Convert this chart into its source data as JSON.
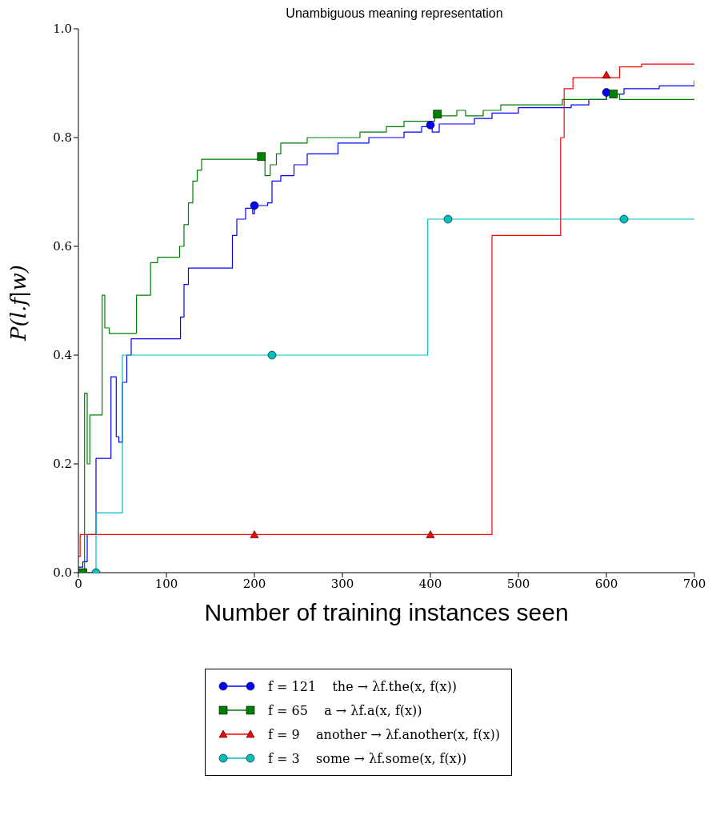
{
  "chart_data": {
    "type": "step",
    "title": "Unambiguous meaning representation",
    "xlabel": "Number of training instances seen",
    "ylabel": "P(l.f|w)",
    "xlim": [
      0,
      700
    ],
    "xticks": [
      0,
      100,
      200,
      300,
      400,
      500,
      600,
      700
    ],
    "ylim": [
      0,
      1
    ],
    "yticks": [
      {
        "value": 0,
        "label": "0.0"
      },
      {
        "value": 0.2,
        "label": "0.2"
      },
      {
        "value": 0.4,
        "label": "0.4"
      },
      {
        "value": 0.6,
        "label": "0.6"
      },
      {
        "value": 0.8,
        "label": "0.8"
      },
      {
        "value": 1,
        "label": "1.0"
      }
    ],
    "grid": false,
    "legend": "bottom",
    "line_style": "solid",
    "series": [
      {
        "name": "f = 121    the → λf.the(x, f(x))",
        "color": "#0000ff",
        "x": [
          0,
          5,
          10,
          20,
          35,
          37,
          40,
          43,
          46,
          50,
          55,
          60,
          115,
          116,
          120,
          125,
          170,
          175,
          180,
          190,
          195,
          198,
          200,
          215,
          220,
          230,
          245,
          260,
          290,
          295,
          320,
          330,
          370,
          390,
          400,
          402,
          410,
          450,
          470,
          500,
          560,
          580,
          600,
          620,
          660,
          700
        ],
        "values": [
          0.01,
          0.02,
          0.07,
          0.21,
          0.21,
          0.36,
          0.36,
          0.25,
          0.24,
          0.35,
          0.4,
          0.43,
          0.43,
          0.47,
          0.53,
          0.56,
          0.56,
          0.62,
          0.65,
          0.67,
          0.67,
          0.66,
          0.675,
          0.68,
          0.72,
          0.73,
          0.75,
          0.77,
          0.77,
          0.79,
          0.79,
          0.8,
          0.81,
          0.82,
          0.82,
          0.81,
          0.825,
          0.835,
          0.845,
          0.855,
          0.86,
          0.87,
          0.88,
          0.89,
          0.895,
          0.905
        ]
      },
      {
        "name": "f = 65    a → λf.a(x, f(x))",
        "color": "#008000",
        "x": [
          0,
          5,
          7,
          10,
          13,
          25,
          27,
          30,
          35,
          65,
          66,
          80,
          82,
          90,
          110,
          115,
          120,
          125,
          130,
          135,
          140,
          165,
          210,
          212,
          218,
          225,
          230,
          245,
          260,
          300,
          320,
          350,
          370,
          405,
          430,
          440,
          460,
          480,
          530,
          550,
          600,
          610,
          615,
          700
        ],
        "values": [
          0,
          0,
          0.33,
          0.2,
          0.29,
          0.29,
          0.51,
          0.45,
          0.44,
          0.44,
          0.51,
          0.51,
          0.57,
          0.58,
          0.58,
          0.6,
          0.64,
          0.68,
          0.72,
          0.74,
          0.76,
          0.76,
          0.77,
          0.73,
          0.75,
          0.77,
          0.79,
          0.79,
          0.8,
          0.8,
          0.81,
          0.82,
          0.83,
          0.84,
          0.85,
          0.84,
          0.85,
          0.86,
          0.86,
          0.87,
          0.88,
          0.88,
          0.87,
          0.87
        ]
      },
      {
        "name": "f = 9    another → λf.another(x, f(x))",
        "color": "#ff0000",
        "x": [
          0,
          2,
          468,
          470,
          545,
          548,
          552,
          562,
          610,
          615,
          640,
          700
        ],
        "values": [
          0.03,
          0.07,
          0.07,
          0.62,
          0.62,
          0.8,
          0.89,
          0.91,
          0.91,
          0.93,
          0.935,
          0.935
        ]
      },
      {
        "name": "f = 3    some → λf.some(x, f(x))",
        "color": "#00bfbf",
        "x": [
          0,
          18,
          20,
          49,
          50,
          395,
          397,
          700
        ],
        "values": [
          0,
          0,
          0.11,
          0.11,
          0.4,
          0.4,
          0.65,
          0.65
        ]
      },
      {
        "type": "scatter",
        "color": "#0000ff",
        "marker": "circle",
        "x": [
          200,
          400,
          600
        ],
        "values": [
          0.675,
          0.823,
          0.883
        ]
      },
      {
        "type": "scatter",
        "color": "#008000",
        "marker": "square",
        "x": [
          5,
          208,
          408,
          608
        ],
        "values": [
          0,
          0.765,
          0.843,
          0.88
        ]
      },
      {
        "type": "scatter",
        "color": "#ff0000",
        "marker": "triangle",
        "x": [
          200,
          400,
          600
        ],
        "values": [
          0.07,
          0.07,
          0.915
        ]
      },
      {
        "type": "scatter",
        "color": "#00bfbf",
        "marker": "circle",
        "x": [
          20,
          220,
          420,
          620
        ],
        "values": [
          0,
          0.4,
          0.65,
          0.65
        ]
      }
    ]
  }
}
